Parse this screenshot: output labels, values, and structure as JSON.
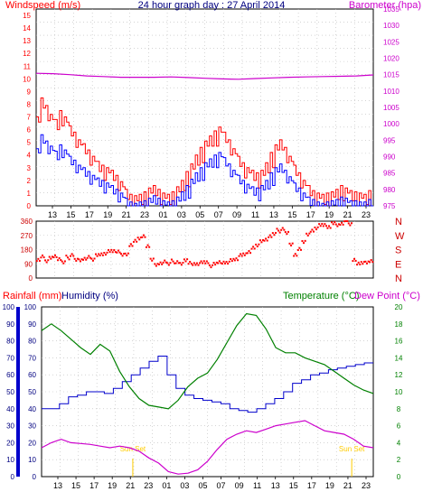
{
  "chart_data": [
    {
      "type": "line",
      "title": "24 hour graph day : 27 April 2014",
      "ylabel_left": "Windspeed (m/s)",
      "ylabel_right": "Barometer (hpa)",
      "y_left_lim": [
        0,
        15.5
      ],
      "y_left_ticks": [
        "0",
        "1",
        "2",
        "3",
        "4",
        "5",
        "6",
        "7",
        "8",
        "9",
        "10",
        "11",
        "12",
        "13",
        "14",
        "15"
      ],
      "y_right_lim": [
        975,
        1035
      ],
      "y_right_ticks": [
        "975",
        "980",
        "985",
        "990",
        "995",
        "1000",
        "1005",
        "1010",
        "1015",
        "1020",
        "1025",
        "1030",
        "1035"
      ],
      "x_ticks": [
        "13",
        "15",
        "17",
        "19",
        "21",
        "23",
        "01",
        "03",
        "05",
        "07",
        "09",
        "11",
        "13",
        "15",
        "17",
        "19",
        "21",
        "23"
      ],
      "grid": true,
      "colors": {
        "gust": "#ff0000",
        "average": "#0000ff",
        "barometer": "#cc00cc"
      },
      "series": [
        {
          "name": "Windspeed",
          "role": "gust",
          "values": [
            7.0,
            8.5,
            7.9,
            7.2,
            6.8,
            7.5,
            7.0,
            6.3,
            5.8,
            5.2,
            4.9,
            4.4,
            3.9,
            3.5,
            3.2,
            3.0,
            2.8,
            2.4,
            1.9,
            1.3,
            0.9,
            0.8,
            0.9,
            1.1,
            1.4,
            1.6,
            1.3,
            1.0,
            0.9,
            1.1,
            1.5,
            2.0,
            2.7,
            3.3,
            4.0,
            4.6,
            5.1,
            5.5,
            5.9,
            6.2,
            5.8,
            5.2,
            4.5,
            3.9,
            3.4,
            3.0,
            2.8,
            2.6,
            2.8,
            3.4,
            4.2,
            4.8,
            5.2,
            4.6,
            3.9,
            3.2,
            2.6,
            2.0,
            1.6,
            1.2,
            1.0,
            0.9,
            1.0,
            1.1,
            1.3,
            1.6,
            1.4,
            1.2,
            1.1,
            1.0,
            0.9,
            1.2
          ]
        },
        {
          "name": "Windspeed average",
          "role": "average",
          "values": [
            4.5,
            5.6,
            5.1,
            4.7,
            4.3,
            4.8,
            4.4,
            3.9,
            3.6,
            3.2,
            3.0,
            2.7,
            2.4,
            2.2,
            2.0,
            1.8,
            1.6,
            1.3,
            1.0,
            0.6,
            0.3,
            0.2,
            0.3,
            0.4,
            0.6,
            0.8,
            0.6,
            0.4,
            0.3,
            0.4,
            0.7,
            1.1,
            1.6,
            2.1,
            2.6,
            3.0,
            3.4,
            3.7,
            4.0,
            4.2,
            3.8,
            3.3,
            2.8,
            2.4,
            2.0,
            1.7,
            1.5,
            1.4,
            1.6,
            2.0,
            2.6,
            3.0,
            3.3,
            2.8,
            2.3,
            1.8,
            1.4,
            1.0,
            0.7,
            0.5,
            0.3,
            0.2,
            0.3,
            0.4,
            0.5,
            0.7,
            0.6,
            0.4,
            0.4,
            0.3,
            0.3,
            0.5
          ]
        },
        {
          "name": "Barometer",
          "role": "barometer",
          "values": [
            1015.4,
            1015.3,
            1015.0,
            1014.6,
            1014.4,
            1014.2,
            1014.2,
            1014.2,
            1014.3,
            1014.1,
            1013.9,
            1013.7,
            1013.6,
            1013.8,
            1014.0,
            1014.2,
            1014.3,
            1014.4,
            1014.5,
            1014.6,
            1014.9
          ]
        }
      ]
    },
    {
      "type": "scatter",
      "ylabel": "",
      "ylim": [
        0,
        360
      ],
      "y_ticks": [
        "0",
        "90",
        "180",
        "270",
        "360"
      ],
      "direction_labels": [
        "N",
        "W",
        "S",
        "E",
        "N"
      ],
      "x_ticks": [
        "13",
        "15",
        "17",
        "19",
        "21",
        "23",
        "01",
        "03",
        "05",
        "07",
        "09",
        "11",
        "13",
        "15",
        "17",
        "19",
        "21",
        "23"
      ],
      "grid": true,
      "colors": {
        "points": "#ff0000"
      },
      "series": [
        {
          "name": "Wind direction",
          "values": [
            120,
            135,
            110,
            125,
            140,
            115,
            100,
            130,
            145,
            120,
            110,
            125,
            130,
            118,
            140,
            150,
            160,
            170,
            175,
            165,
            150,
            145,
            210,
            230,
            250,
            270,
            200,
            120,
            80,
            95,
            100,
            90,
            105,
            100,
            95,
            110,
            100,
            85,
            90,
            95,
            100,
            80,
            90,
            105,
            95,
            100,
            110,
            120,
            140,
            150,
            170,
            190,
            210,
            230,
            245,
            260,
            280,
            300,
            310,
            290,
            210,
            150,
            180,
            230,
            270,
            300,
            320,
            335,
            340,
            320,
            350,
            330,
            345,
            360,
            340,
            120,
            90,
            100,
            95,
            110
          ]
        }
      ]
    },
    {
      "type": "line",
      "ylabel_left_1": "Rainfall (mm)",
      "ylabel_left_2": "Humidity (%)",
      "ylabel_right_1": "Temperature (°C)",
      "ylabel_right_2": "Dew Point (°C)",
      "humidity_lim": [
        0,
        100
      ],
      "humidity_ticks": [
        "0",
        "10",
        "20",
        "30",
        "40",
        "50",
        "60",
        "70",
        "80",
        "90",
        "100"
      ],
      "rain_lim": [
        0,
        100
      ],
      "rain_ticks": [
        "0",
        "10",
        "20",
        "30",
        "40",
        "50",
        "60",
        "70",
        "80",
        "90",
        "100"
      ],
      "temp_lim": [
        0,
        20
      ],
      "temp_ticks": [
        "0",
        "2",
        "4",
        "6",
        "8",
        "10",
        "12",
        "14",
        "16",
        "18",
        "20"
      ],
      "x_ticks": [
        "13",
        "15",
        "17",
        "19",
        "21",
        "23",
        "01",
        "03",
        "05",
        "07",
        "09",
        "11",
        "13",
        "15",
        "17",
        "19",
        "21",
        "23"
      ],
      "annotations": [
        "Sun Set",
        "Sun Set"
      ],
      "grid": true,
      "colors": {
        "humidity": "#0000cc",
        "temperature": "#008000",
        "dewpoint": "#cc00cc",
        "rain_axis": "#0000cc",
        "sun": "#ffcc00"
      },
      "series": [
        {
          "name": "Humidity",
          "role": "humidity",
          "values": [
            40,
            40,
            43,
            47,
            48,
            50,
            50,
            49,
            52,
            56,
            60,
            64,
            68,
            71,
            60,
            52,
            48,
            46,
            45,
            44,
            43,
            40,
            39,
            38,
            40,
            43,
            46,
            50,
            55,
            57,
            60,
            61,
            63,
            64,
            65,
            66,
            67
          ]
        },
        {
          "name": "Temperature",
          "role": "temperature",
          "values": [
            17.2,
            18.0,
            17.2,
            16.2,
            15.2,
            14.4,
            15.6,
            14.8,
            12.4,
            10.6,
            9.2,
            8.4,
            8.2,
            8.0,
            9.0,
            10.6,
            11.6,
            12.2,
            13.8,
            15.8,
            17.8,
            19.2,
            19.0,
            17.4,
            15.2,
            14.6,
            14.6,
            14.0,
            13.6,
            13.2,
            12.4,
            11.6,
            10.8,
            10.2,
            9.8
          ]
        },
        {
          "name": "Dew Point",
          "role": "dewpoint",
          "values": [
            3.4,
            4.0,
            4.4,
            4.0,
            3.9,
            3.8,
            3.6,
            3.4,
            3.6,
            3.4,
            3.0,
            2.2,
            1.6,
            0.6,
            0.3,
            0.4,
            0.8,
            1.8,
            3.2,
            4.4,
            5.0,
            5.4,
            5.2,
            5.6,
            6.0,
            6.2,
            6.4,
            6.6,
            6.0,
            5.4,
            5.2,
            5.0,
            4.4,
            3.6,
            3.4
          ]
        }
      ]
    }
  ]
}
